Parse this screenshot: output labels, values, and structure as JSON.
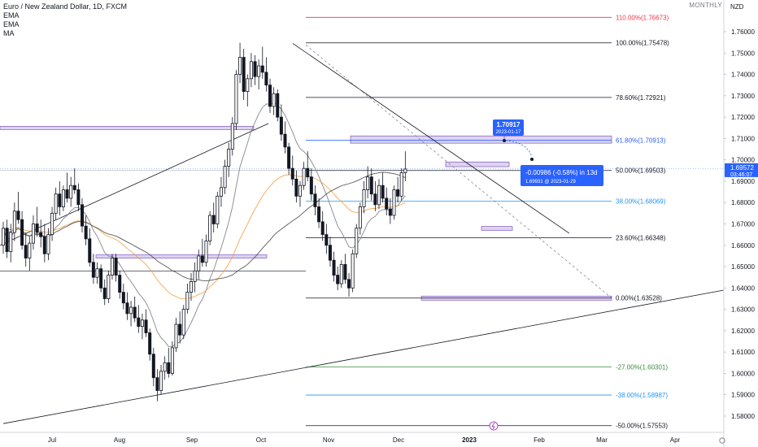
{
  "legend": {
    "symbol": "Euro / New Zealand Dollar, 1D, FXCM",
    "indicators": [
      "EMA",
      "EMA",
      "MA"
    ]
  },
  "timeframe_label": "MONTHLY",
  "currency": "NZD",
  "colors": {
    "up": "#131722",
    "down": "#131722",
    "zone_fill": "#d1c4e9",
    "zone_stroke": "#7e57c2",
    "ema_fast": "#787b86",
    "ema_slow": "#f0a040",
    "ma": "#4a4a4a",
    "callout": "#2962ff"
  },
  "chart_data": {
    "type": "candlestick",
    "ylim": [
      1.572,
      1.772
    ],
    "y_ticks": [
      "1.76000",
      "1.75000",
      "1.74000",
      "1.73000",
      "1.72000",
      "1.71000",
      "1.70000",
      "1.69000",
      "1.68000",
      "1.67000",
      "1.66000",
      "1.65000",
      "1.64000",
      "1.63000",
      "1.62000",
      "1.61000",
      "1.60000",
      "1.59000",
      "1.58000"
    ],
    "x_ticks": [
      "Jul",
      "Aug",
      "Sep",
      "Oct",
      "Nov",
      "Dec",
      "2023",
      "Feb",
      "Mar",
      "Apr"
    ],
    "current_price": "1.69572",
    "countdown": "03:46:07",
    "fib_levels": [
      {
        "ratio": "110.00%",
        "price": 1.76673,
        "label": "110.00%(1.76673)",
        "color": "#f23645"
      },
      {
        "ratio": "100.00%",
        "price": 1.75478,
        "label": "100.00%(1.75478)",
        "color": "#131722"
      },
      {
        "ratio": "78.60%",
        "price": 1.72921,
        "label": "78.60%(1.72921)",
        "color": "#131722"
      },
      {
        "ratio": "61.80%",
        "price": 1.70913,
        "label": "61.80%(1.70913)",
        "color": "#2962ff"
      },
      {
        "ratio": "50.00%",
        "price": 1.69503,
        "label": "50.00%(1.69503)",
        "color": "#131722"
      },
      {
        "ratio": "38.00%",
        "price": 1.68069,
        "label": "38.00%(1.68069)",
        "color": "#2196f3"
      },
      {
        "ratio": "23.60%",
        "price": 1.66348,
        "label": "23.60%(1.66348)",
        "color": "#131722"
      },
      {
        "ratio": "0.00%",
        "price": 1.63528,
        "label": "0.00%(1.63528)",
        "color": "#131722"
      },
      {
        "ratio": "-27.00%",
        "price": 1.60301,
        "label": "-27.00%(1.60301)",
        "color": "#388e3c"
      },
      {
        "ratio": "-38.00%",
        "price": 1.58987,
        "label": "-38.00%(1.58987)",
        "color": "#2196f3"
      },
      {
        "ratio": "-50.00%",
        "price": 1.57553,
        "label": "-50.00%(1.57553)",
        "color": "#131722"
      }
    ],
    "annotations": {
      "high_marker": {
        "price": "1.70917",
        "date": "2023-01-17"
      },
      "measure": {
        "change": "-0.00986 (-0.58%) in 13d",
        "target": "1.69931 @ 2023-01-29"
      }
    },
    "candles": [
      [
        1.66,
        1.671,
        1.656,
        1.668
      ],
      [
        1.668,
        1.672,
        1.654,
        1.657
      ],
      [
        1.657,
        1.67,
        1.652,
        1.666
      ],
      [
        1.666,
        1.68,
        1.662,
        1.676
      ],
      [
        1.676,
        1.685,
        1.67,
        1.672
      ],
      [
        1.672,
        1.676,
        1.658,
        1.66
      ],
      [
        1.66,
        1.666,
        1.65,
        1.654
      ],
      [
        1.654,
        1.664,
        1.648,
        1.661
      ],
      [
        1.661,
        1.674,
        1.658,
        1.67
      ],
      [
        1.67,
        1.678,
        1.664,
        1.666
      ],
      [
        1.666,
        1.672,
        1.659,
        1.664
      ],
      [
        1.664,
        1.67,
        1.652,
        1.656
      ],
      [
        1.656,
        1.668,
        1.653,
        1.665
      ],
      [
        1.665,
        1.678,
        1.662,
        1.675
      ],
      [
        1.675,
        1.687,
        1.672,
        1.684
      ],
      [
        1.684,
        1.69,
        1.674,
        1.678
      ],
      [
        1.678,
        1.688,
        1.676,
        1.686
      ],
      [
        1.686,
        1.694,
        1.68,
        1.682
      ],
      [
        1.682,
        1.692,
        1.678,
        1.688
      ],
      [
        1.688,
        1.696,
        1.684,
        1.686
      ],
      [
        1.686,
        1.689,
        1.676,
        1.679
      ],
      [
        1.679,
        1.682,
        1.666,
        1.669
      ],
      [
        1.669,
        1.674,
        1.66,
        1.663
      ],
      [
        1.663,
        1.668,
        1.65,
        1.652
      ],
      [
        1.652,
        1.656,
        1.642,
        1.645
      ],
      [
        1.645,
        1.652,
        1.642,
        1.649
      ],
      [
        1.649,
        1.651,
        1.638,
        1.64
      ],
      [
        1.64,
        1.644,
        1.632,
        1.635
      ],
      [
        1.635,
        1.648,
        1.633,
        1.646
      ],
      [
        1.646,
        1.656,
        1.644,
        1.654
      ],
      [
        1.654,
        1.656,
        1.643,
        1.646
      ],
      [
        1.646,
        1.648,
        1.635,
        1.638
      ],
      [
        1.638,
        1.642,
        1.63,
        1.633
      ],
      [
        1.633,
        1.638,
        1.625,
        1.628
      ],
      [
        1.628,
        1.634,
        1.622,
        1.631
      ],
      [
        1.631,
        1.636,
        1.624,
        1.626
      ],
      [
        1.626,
        1.632,
        1.619,
        1.622
      ],
      [
        1.622,
        1.628,
        1.616,
        1.625
      ],
      [
        1.625,
        1.63,
        1.617,
        1.619
      ],
      [
        1.619,
        1.621,
        1.606,
        1.609
      ],
      [
        1.609,
        1.612,
        1.594,
        1.598
      ],
      [
        1.598,
        1.602,
        1.587,
        1.592
      ],
      [
        1.592,
        1.604,
        1.59,
        1.601
      ],
      [
        1.601,
        1.608,
        1.597,
        1.605
      ],
      [
        1.605,
        1.612,
        1.598,
        1.6
      ],
      [
        1.6,
        1.615,
        1.599,
        1.612
      ],
      [
        1.612,
        1.626,
        1.61,
        1.623
      ],
      [
        1.623,
        1.629,
        1.614,
        1.618
      ],
      [
        1.618,
        1.632,
        1.616,
        1.63
      ],
      [
        1.63,
        1.642,
        1.628,
        1.638
      ],
      [
        1.638,
        1.647,
        1.634,
        1.643
      ],
      [
        1.643,
        1.652,
        1.638,
        1.648
      ],
      [
        1.648,
        1.658,
        1.644,
        1.655
      ],
      [
        1.655,
        1.663,
        1.65,
        1.652
      ],
      [
        1.652,
        1.665,
        1.65,
        1.662
      ],
      [
        1.662,
        1.676,
        1.66,
        1.674
      ],
      [
        1.674,
        1.68,
        1.666,
        1.67
      ],
      [
        1.67,
        1.685,
        1.668,
        1.683
      ],
      [
        1.683,
        1.692,
        1.678,
        1.687
      ],
      [
        1.687,
        1.7,
        1.684,
        1.697
      ],
      [
        1.697,
        1.708,
        1.692,
        1.705
      ],
      [
        1.705,
        1.72,
        1.702,
        1.717
      ],
      [
        1.717,
        1.742,
        1.714,
        1.74
      ],
      [
        1.74,
        1.7548,
        1.736,
        1.748
      ],
      [
        1.748,
        1.752,
        1.728,
        1.732
      ],
      [
        1.732,
        1.74,
        1.725,
        1.738
      ],
      [
        1.738,
        1.75,
        1.734,
        1.746
      ],
      [
        1.746,
        1.749,
        1.735,
        1.739
      ],
      [
        1.739,
        1.747,
        1.733,
        1.744
      ],
      [
        1.744,
        1.753,
        1.738,
        1.741
      ],
      [
        1.741,
        1.748,
        1.732,
        1.735
      ],
      [
        1.735,
        1.738,
        1.722,
        1.725
      ],
      [
        1.725,
        1.734,
        1.721,
        1.731
      ],
      [
        1.731,
        1.733,
        1.718,
        1.72
      ],
      [
        1.72,
        1.726,
        1.709,
        1.712
      ],
      [
        1.712,
        1.718,
        1.703,
        1.706
      ],
      [
        1.706,
        1.708,
        1.693,
        1.696
      ],
      [
        1.696,
        1.702,
        1.688,
        1.691
      ],
      [
        1.691,
        1.695,
        1.68,
        1.683
      ],
      [
        1.683,
        1.69,
        1.678,
        1.688
      ],
      [
        1.688,
        1.699,
        1.686,
        1.696
      ],
      [
        1.696,
        1.704,
        1.69,
        1.692
      ],
      [
        1.692,
        1.696,
        1.681,
        1.684
      ],
      [
        1.684,
        1.688,
        1.674,
        1.678
      ],
      [
        1.678,
        1.682,
        1.668,
        1.671
      ],
      [
        1.671,
        1.676,
        1.662,
        1.665
      ],
      [
        1.665,
        1.67,
        1.656,
        1.66
      ],
      [
        1.66,
        1.664,
        1.65,
        1.653
      ],
      [
        1.653,
        1.657,
        1.643,
        1.646
      ],
      [
        1.646,
        1.65,
        1.639,
        1.642
      ],
      [
        1.642,
        1.653,
        1.64,
        1.651
      ],
      [
        1.651,
        1.656,
        1.642,
        1.644
      ],
      [
        1.644,
        1.647,
        1.636,
        1.64
      ],
      [
        1.64,
        1.658,
        1.638,
        1.656
      ],
      [
        1.656,
        1.67,
        1.654,
        1.668
      ],
      [
        1.668,
        1.68,
        1.665,
        1.678
      ],
      [
        1.678,
        1.69,
        1.675,
        1.686
      ],
      [
        1.686,
        1.697,
        1.682,
        1.692
      ],
      [
        1.692,
        1.696,
        1.681,
        1.684
      ],
      [
        1.684,
        1.69,
        1.676,
        1.679
      ],
      [
        1.679,
        1.691,
        1.677,
        1.688
      ],
      [
        1.688,
        1.694,
        1.68,
        1.682
      ],
      [
        1.682,
        1.687,
        1.674,
        1.677
      ],
      [
        1.677,
        1.682,
        1.67,
        1.674
      ],
      [
        1.674,
        1.688,
        1.672,
        1.686
      ],
      [
        1.686,
        1.692,
        1.68,
        1.683
      ],
      [
        1.683,
        1.696,
        1.681,
        1.694
      ],
      [
        1.694,
        1.704,
        1.69,
        1.6957
      ]
    ]
  }
}
